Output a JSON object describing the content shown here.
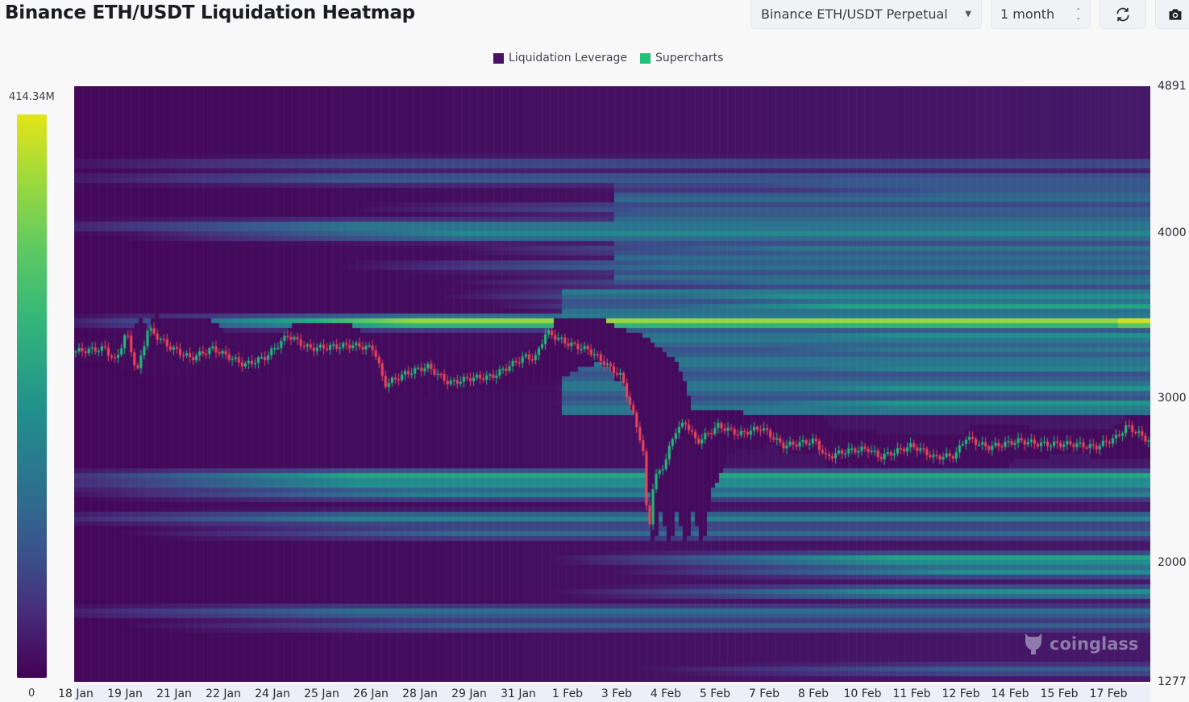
{
  "header": {
    "title": "Binance ETH/USDT Liquidation Heatmap",
    "exchange_select": "Binance ETH/USDT Perpetual",
    "range_select": "1 month",
    "refresh_icon": "refresh-icon",
    "camera_icon": "camera-icon"
  },
  "legend": {
    "items": [
      {
        "label": "Liquidation Leverage",
        "color": "#4a1165"
      },
      {
        "label": "Supercharts",
        "color": "#1fc27a"
      }
    ]
  },
  "colorbar": {
    "max_label": "414.34M",
    "min_label": "0"
  },
  "watermark": "coinglass",
  "chart_data": {
    "type": "heatmap",
    "title": "Binance ETH/USDT Liquidation Heatmap",
    "xlabel": "",
    "ylabel": "",
    "y_range": [
      1277,
      4891
    ],
    "y_ticks": [
      {
        "label": "4891",
        "value": 4891
      },
      {
        "label": "4000",
        "value": 4000
      },
      {
        "label": "3000",
        "value": 3000
      },
      {
        "label": "2000",
        "value": 2000
      },
      {
        "label": "1277",
        "value": 1277
      }
    ],
    "x_ticks": [
      "18 Jan",
      "19 Jan",
      "21 Jan",
      "22 Jan",
      "24 Jan",
      "25 Jan",
      "26 Jan",
      "28 Jan",
      "29 Jan",
      "31 Jan",
      "1 Feb",
      "3 Feb",
      "4 Feb",
      "5 Feb",
      "7 Feb",
      "8 Feb",
      "10 Feb",
      "11 Feb",
      "12 Feb",
      "14 Feb",
      "15 Feb",
      "17 Feb"
    ],
    "colorscale": "viridis",
    "color_range": [
      0,
      414340000
    ],
    "color_range_label": [
      "0",
      "414.34M"
    ],
    "liquidation_bands": [
      {
        "price": 4420,
        "intensity": 0.25,
        "start": 0.0
      },
      {
        "price": 4330,
        "intensity": 0.3,
        "start": 0.0
      },
      {
        "price": 4290,
        "intensity": 0.28,
        "start": 0.45
      },
      {
        "price": 4240,
        "intensity": 0.35,
        "start": 0.55
      },
      {
        "price": 4150,
        "intensity": 0.3,
        "start": 0.3
      },
      {
        "price": 4040,
        "intensity": 0.45,
        "start": 0.0
      },
      {
        "price": 3990,
        "intensity": 0.48,
        "start": 0.1
      },
      {
        "price": 3900,
        "intensity": 0.4,
        "start": 0.4
      },
      {
        "price": 3800,
        "intensity": 0.4,
        "start": 0.3
      },
      {
        "price": 3700,
        "intensity": 0.38,
        "start": 0.4
      },
      {
        "price": 3620,
        "intensity": 0.5,
        "start": 0.4
      },
      {
        "price": 3560,
        "intensity": 0.58,
        "start": 0.45
      },
      {
        "price": 3460,
        "intensity": 0.88,
        "start": 0.05,
        "peak": 1.0
      },
      {
        "price": 3380,
        "intensity": 0.5,
        "start": 0.5
      },
      {
        "price": 3300,
        "intensity": 0.42,
        "start": 0.5
      },
      {
        "price": 3180,
        "intensity": 0.45,
        "start": 0.5
      },
      {
        "price": 3060,
        "intensity": 0.52,
        "start": 0.5
      },
      {
        "price": 2960,
        "intensity": 0.55,
        "start": 0.5
      },
      {
        "price": 2520,
        "intensity": 0.62,
        "start": 0.0
      },
      {
        "price": 2470,
        "intensity": 0.5,
        "start": 0.0
      },
      {
        "price": 2420,
        "intensity": 0.45,
        "start": 0.05
      },
      {
        "price": 2270,
        "intensity": 0.45,
        "start": 0.0
      },
      {
        "price": 2180,
        "intensity": 0.35,
        "start": 0.1
      },
      {
        "price": 2020,
        "intensity": 0.62,
        "start": 0.5
      },
      {
        "price": 1950,
        "intensity": 0.5,
        "start": 0.55
      },
      {
        "price": 1820,
        "intensity": 0.5,
        "start": 0.5
      },
      {
        "price": 1700,
        "intensity": 0.38,
        "start": 0.0
      },
      {
        "price": 1620,
        "intensity": 0.3,
        "start": 0.1
      },
      {
        "price": 1350,
        "intensity": 0.3,
        "start": 0.55
      }
    ],
    "price_series": {
      "name": "ETH/USDT",
      "points": [
        {
          "x": 0.0,
          "price": 3280
        },
        {
          "x": 0.03,
          "price": 3300
        },
        {
          "x": 0.04,
          "price": 3220
        },
        {
          "x": 0.05,
          "price": 3400
        },
        {
          "x": 0.06,
          "price": 3150
        },
        {
          "x": 0.07,
          "price": 3420
        },
        {
          "x": 0.09,
          "price": 3310
        },
        {
          "x": 0.11,
          "price": 3240
        },
        {
          "x": 0.13,
          "price": 3300
        },
        {
          "x": 0.16,
          "price": 3200
        },
        {
          "x": 0.18,
          "price": 3250
        },
        {
          "x": 0.2,
          "price": 3380
        },
        {
          "x": 0.22,
          "price": 3300
        },
        {
          "x": 0.26,
          "price": 3320
        },
        {
          "x": 0.28,
          "price": 3300
        },
        {
          "x": 0.29,
          "price": 3080
        },
        {
          "x": 0.31,
          "price": 3150
        },
        {
          "x": 0.33,
          "price": 3190
        },
        {
          "x": 0.35,
          "price": 3090
        },
        {
          "x": 0.37,
          "price": 3120
        },
        {
          "x": 0.39,
          "price": 3130
        },
        {
          "x": 0.42,
          "price": 3250
        },
        {
          "x": 0.43,
          "price": 3240
        },
        {
          "x": 0.44,
          "price": 3400
        },
        {
          "x": 0.46,
          "price": 3330
        },
        {
          "x": 0.48,
          "price": 3290
        },
        {
          "x": 0.5,
          "price": 3180
        },
        {
          "x": 0.51,
          "price": 3130
        },
        {
          "x": 0.52,
          "price": 2920
        },
        {
          "x": 0.53,
          "price": 2700
        },
        {
          "x": 0.535,
          "price": 2150
        },
        {
          "x": 0.54,
          "price": 2500
        },
        {
          "x": 0.55,
          "price": 2600
        },
        {
          "x": 0.56,
          "price": 2800
        },
        {
          "x": 0.57,
          "price": 2850
        },
        {
          "x": 0.58,
          "price": 2730
        },
        {
          "x": 0.6,
          "price": 2830
        },
        {
          "x": 0.62,
          "price": 2780
        },
        {
          "x": 0.64,
          "price": 2820
        },
        {
          "x": 0.66,
          "price": 2710
        },
        {
          "x": 0.69,
          "price": 2740
        },
        {
          "x": 0.7,
          "price": 2640
        },
        {
          "x": 0.72,
          "price": 2680
        },
        {
          "x": 0.74,
          "price": 2690
        },
        {
          "x": 0.75,
          "price": 2640
        },
        {
          "x": 0.78,
          "price": 2710
        },
        {
          "x": 0.79,
          "price": 2680
        },
        {
          "x": 0.8,
          "price": 2640
        },
        {
          "x": 0.82,
          "price": 2650
        },
        {
          "x": 0.83,
          "price": 2760
        },
        {
          "x": 0.85,
          "price": 2700
        },
        {
          "x": 0.88,
          "price": 2740
        },
        {
          "x": 0.9,
          "price": 2720
        },
        {
          "x": 0.93,
          "price": 2720
        },
        {
          "x": 0.95,
          "price": 2700
        },
        {
          "x": 0.97,
          "price": 2760
        },
        {
          "x": 0.98,
          "price": 2830
        },
        {
          "x": 1.0,
          "price": 2740
        }
      ]
    },
    "candle_colors": {
      "up": "#1fc27a",
      "down": "#f0465a"
    },
    "grid": false,
    "legend_position": "top-center"
  }
}
